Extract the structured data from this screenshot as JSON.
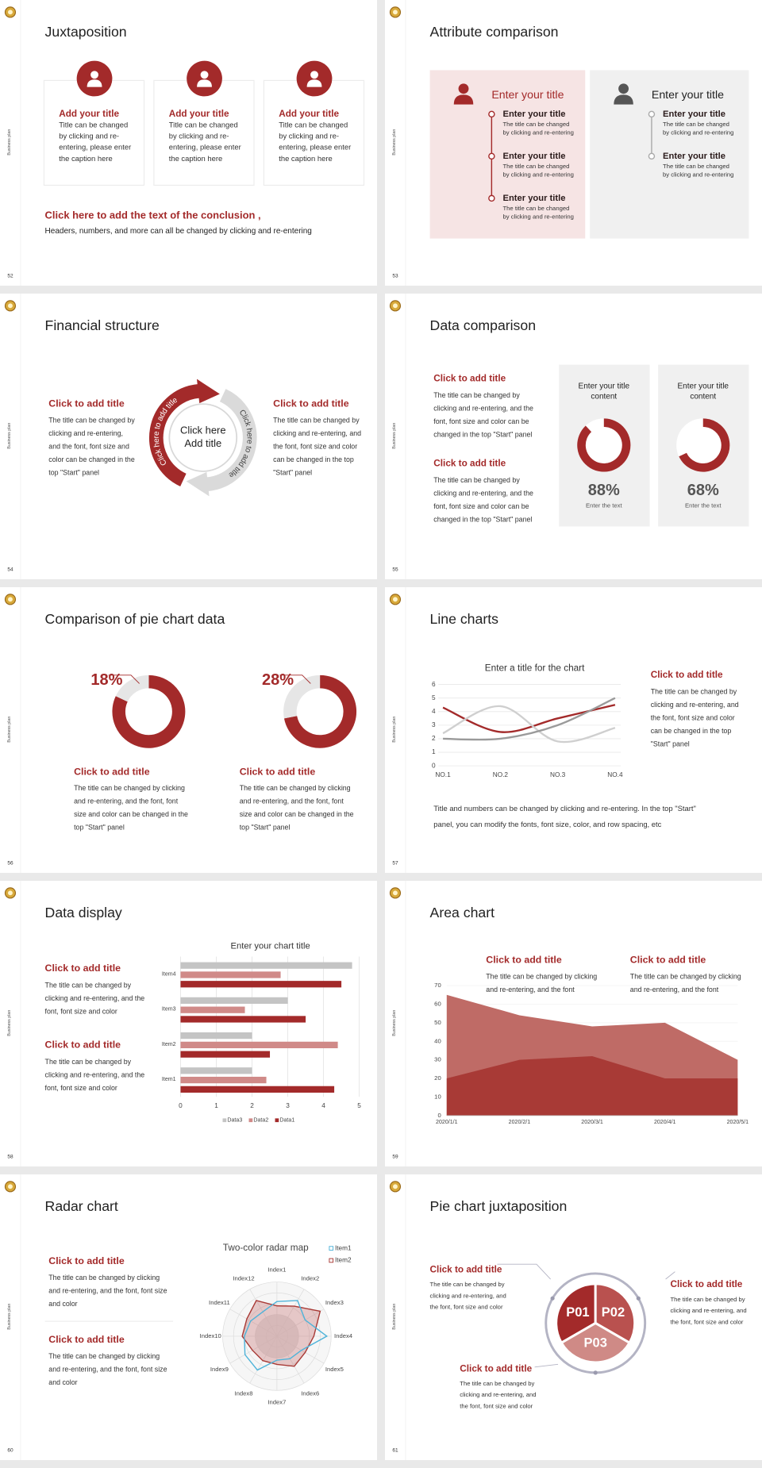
{
  "slides": [
    {
      "number": 52,
      "side": "Business plan",
      "title": "Juxtaposition",
      "cards": [
        {
          "title": "Add your title",
          "lines": [
            "Title can be changed",
            "by clicking and re-",
            "entering, please enter",
            "the caption here"
          ]
        },
        {
          "title": "Add your title",
          "lines": [
            "Title can be changed",
            "by clicking and re-",
            "entering, please enter",
            "the caption here"
          ]
        },
        {
          "title": "Add your title",
          "lines": [
            "Title can be changed",
            "by clicking and re-",
            "entering, please enter",
            "the caption here"
          ]
        }
      ],
      "conclusion": {
        "title": "Click here to add the text of the conclusion ,",
        "text": "Headers, numbers, and more can all be changed by clicking and re-entering"
      }
    },
    {
      "number": 53,
      "side": "Business plan",
      "title": "Attribute comparison",
      "panels": [
        {
          "title": "Enter your title",
          "items": [
            {
              "title": "Enter your title",
              "lines": [
                "The title can be changed",
                "by clicking and re-entering"
              ]
            },
            {
              "title": "Enter your title",
              "lines": [
                "The title can be changed",
                "by clicking and re-entering"
              ]
            },
            {
              "title": "Enter your title",
              "lines": [
                "The title can be changed",
                "by clicking and re-entering"
              ]
            }
          ]
        },
        {
          "title": "Enter your title",
          "items": [
            {
              "title": "Enter your title",
              "lines": [
                "The title can be changed",
                "by clicking and re-entering"
              ]
            },
            {
              "title": "Enter your title",
              "lines": [
                "The title can be changed",
                "by clicking and re-entering"
              ]
            }
          ]
        }
      ]
    },
    {
      "number": 54,
      "side": "Business plan",
      "title": "Financial structure",
      "left": {
        "title": "Click to add title",
        "lines": [
          "The title can be changed by",
          "clicking and re-entering,",
          "and the font, font size and",
          "color can be changed in the",
          "top \"Start\" panel"
        ]
      },
      "right": {
        "title": "Click to add title",
        "lines": [
          "The title can be changed by",
          "clicking and re-entering, and",
          "the font, font size and color",
          "can be changed in the top",
          "\"Start\" panel"
        ]
      },
      "center": [
        "Click here",
        "Add title"
      ],
      "arcs": [
        "Click here to add title",
        "Click here to add title"
      ]
    },
    {
      "number": 55,
      "side": "Business plan",
      "title": "Data comparison",
      "blocks": [
        {
          "title": "Click to add title",
          "lines": [
            "The title can be changed by",
            "clicking and re-entering, and the",
            "font, font size and color can be",
            "changed in the top \"Start\" panel"
          ]
        },
        {
          "title": "Click to add title",
          "lines": [
            "The title can be changed by",
            "clicking and re-entering, and the",
            "font, font size and color can be",
            "changed in the top \"Start\" panel"
          ]
        }
      ],
      "cards": [
        {
          "title": [
            "Enter your title",
            "content"
          ],
          "value": {
            "value": 88,
            "label": "88%"
          },
          "caption": "Enter the text"
        },
        {
          "title": [
            "Enter your title",
            "content"
          ],
          "value": {
            "value": 68,
            "label": "68%"
          },
          "caption": "Enter the text"
        }
      ]
    },
    {
      "number": 56,
      "side": "Business plan",
      "title": "Comparison of pie chart data",
      "items": [
        {
          "value": {
            "value": 18,
            "label": "18%"
          },
          "title": "Click to add title",
          "lines": [
            "The title can be changed by clicking",
            "and re-entering, and the font, font",
            "size and color can be changed in the",
            "top \"Start\" panel"
          ]
        },
        {
          "value": {
            "value": 28,
            "label": "28%"
          },
          "title": "Click to add title",
          "lines": [
            "The title can be changed by clicking",
            "and re-entering, and the font, font",
            "size and color can be changed in the",
            "top \"Start\" panel"
          ]
        }
      ]
    },
    {
      "number": 57,
      "side": "Business plan",
      "title": "Line charts",
      "chart": {
        "type": "line",
        "title": "Enter a title for the chart",
        "categories": [
          "NO.1",
          "NO.2",
          "NO.3",
          "NO.4"
        ],
        "series": [
          {
            "color": "#a32a2a",
            "values": [
              4.3,
              2.5,
              3.5,
              4.5
            ]
          },
          {
            "color": "#cfcfcf",
            "values": [
              2.4,
              4.4,
              1.8,
              2.8
            ]
          },
          {
            "color": "#9a9a9a",
            "values": [
              2,
              2,
              3,
              5
            ]
          }
        ],
        "ylim": [
          0,
          6
        ],
        "yticks": [
          0,
          1,
          2,
          3,
          4,
          5,
          6
        ],
        "grid": true
      },
      "side_text": {
        "title": "Click to add title",
        "lines": [
          "The title can be changed by",
          "clicking and re-entering, and",
          "the font, font size and color",
          "can be changed in the top",
          "\"Start\" panel"
        ]
      },
      "note": [
        "Title and numbers can be changed by clicking and re-entering. In the top \"Start\"",
        "panel, you can modify the fonts, font size, color, and row spacing, etc"
      ]
    },
    {
      "number": 58,
      "side": "Business plan",
      "title": "Data display",
      "blocks": [
        {
          "title": "Click to add title",
          "lines": [
            "The title can be changed by",
            "clicking and re-entering, and the",
            "font, font size and color"
          ]
        },
        {
          "title": "Click to add title",
          "lines": [
            "The title can be changed by",
            "clicking and re-entering, and the",
            "font, font size and color"
          ]
        }
      ],
      "chart": {
        "type": "hbar",
        "title": "Enter your chart title",
        "categories": [
          "Item1",
          "Item2",
          "Item3",
          "Item4"
        ],
        "series": [
          {
            "name": "Data1",
            "color": "#a32a2a",
            "values": [
              4.3,
              2.5,
              3.5,
              4.5
            ]
          },
          {
            "name": "Data2",
            "color": "#d08a88",
            "values": [
              2.4,
              4.4,
              1.8,
              2.8
            ]
          },
          {
            "name": "Data3",
            "color": "#c4c4c4",
            "values": [
              2,
              2,
              3,
              4.8
            ]
          }
        ],
        "xlim": [
          0,
          5
        ],
        "xticks": [
          0,
          1,
          2,
          3,
          4,
          5
        ],
        "grid": true
      }
    },
    {
      "number": 59,
      "side": "Business plan",
      "title": "Area chart",
      "blocks": [
        {
          "title": "Click to add title",
          "lines": [
            "The title can be changed by clicking",
            "and re-entering, and the font"
          ]
        },
        {
          "title": "Click to add title",
          "lines": [
            "The title can be changed by clicking",
            "and re-entering, and the font"
          ]
        }
      ],
      "chart": {
        "type": "area",
        "x": [
          "2020/1/1",
          "2020/2/1",
          "2020/3/1",
          "2020/4/1",
          "2020/5/1"
        ],
        "series": [
          {
            "color": "#bf6b66",
            "values": [
              65,
              54,
              48,
              50,
              30
            ]
          },
          {
            "color": "#a83a36",
            "values": [
              20,
              30,
              32,
              20,
              20
            ]
          }
        ],
        "ylim": [
          0,
          70
        ],
        "yticks": [
          0,
          10,
          20,
          30,
          40,
          50,
          60,
          70
        ]
      }
    },
    {
      "number": 60,
      "side": "Business plan",
      "title": "Radar chart",
      "blocks": [
        {
          "title": "Click to add title",
          "lines": [
            "The title can be changed by clicking",
            "and re-entering, and the font, font size",
            "and color"
          ]
        },
        {
          "title": "Click to add title",
          "lines": [
            "The title can be changed by clicking",
            "and re-entering, and the font, font size",
            "and color"
          ]
        }
      ],
      "chart": {
        "type": "radar",
        "title": "Two-color radar map",
        "categories": [
          "Index1",
          "Index2",
          "Index3",
          "Index4",
          "Index5",
          "Index6",
          "Index7",
          "Index8",
          "Index9",
          "Index10",
          "Index11",
          "Index12"
        ],
        "series": [
          {
            "name": "Item1",
            "color": "#4fb3d9",
            "values": [
              3.2,
              3.8,
              3,
              4.6,
              2.6,
              2.4,
              2.2,
              3.6,
              3.4,
              3,
              2.8,
              2.6
            ]
          },
          {
            "name": "Item2",
            "color": "#a83a36",
            "values": [
              2.8,
              3.2,
              4.6,
              3.4,
              3,
              3.2,
              2.6,
              2.6,
              2.6,
              3.2,
              3.2,
              3.8
            ]
          }
        ],
        "rlim": [
          0,
          5
        ]
      }
    },
    {
      "number": 61,
      "side": "Business plan",
      "title": "Pie chart juxtaposition",
      "segments": [
        "P01",
        "P02",
        "P03"
      ],
      "blocks": [
        {
          "title": "Click to add title",
          "lines": [
            "The title can be changed by",
            "clicking and re-entering, and",
            "the font, font size and color"
          ]
        },
        {
          "title": "Click to add title",
          "lines": [
            "The title can be changed by",
            "clicking and re-entering, and",
            "the font, font size and color"
          ]
        },
        {
          "title": "Click to add title",
          "lines": [
            "The title can be changed by",
            "clicking and re-entering, and",
            "the font, font size and color"
          ]
        }
      ]
    }
  ]
}
